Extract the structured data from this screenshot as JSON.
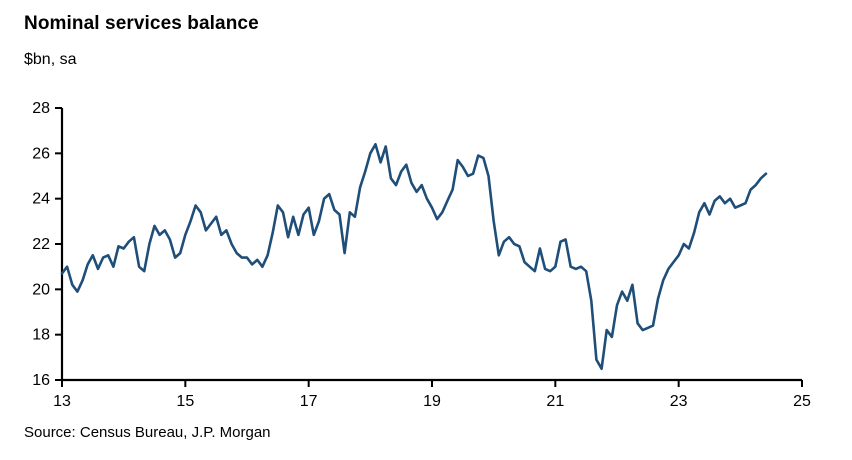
{
  "title": "Nominal services balance",
  "subtitle": "$bn, sa",
  "source": "Source: Census Bureau, J.P. Morgan",
  "chart_data": {
    "type": "line",
    "title": "Nominal services balance",
    "ylabel": "$bn, sa",
    "xlabel": "",
    "grid": false,
    "legend": "none",
    "xlim": [
      13,
      25
    ],
    "ylim": [
      16,
      28
    ],
    "x_ticks": [
      13,
      15,
      17,
      19,
      21,
      23,
      25
    ],
    "y_ticks": [
      16,
      18,
      20,
      22,
      24,
      26,
      28
    ],
    "x_unit": "year (20xx), monthly frequency",
    "line_color": "#1F4E79",
    "axis_color": "#000000",
    "x_start": 13,
    "x_step": 0.0833333,
    "series": [
      {
        "name": "Nominal services balance ($bn, sa)",
        "values": [
          20.7,
          21.0,
          20.2,
          19.9,
          20.4,
          21.1,
          21.5,
          20.9,
          21.4,
          21.5,
          21.0,
          21.9,
          21.8,
          22.1,
          22.3,
          21.0,
          20.8,
          22.0,
          22.8,
          22.4,
          22.6,
          22.2,
          21.4,
          21.6,
          22.4,
          23.0,
          23.7,
          23.4,
          22.6,
          22.9,
          23.2,
          22.4,
          22.6,
          22.0,
          21.6,
          21.4,
          21.4,
          21.1,
          21.3,
          21.0,
          21.5,
          22.5,
          23.7,
          23.4,
          22.3,
          23.2,
          22.4,
          23.3,
          23.6,
          22.4,
          23.0,
          24.0,
          24.2,
          23.5,
          23.3,
          21.6,
          23.4,
          23.2,
          24.5,
          25.2,
          26.0,
          26.4,
          25.6,
          26.3,
          24.9,
          24.6,
          25.2,
          25.5,
          24.7,
          24.3,
          24.6,
          24.0,
          23.6,
          23.1,
          23.4,
          23.9,
          24.4,
          25.7,
          25.4,
          25.0,
          25.1,
          25.9,
          25.8,
          25.0,
          23.0,
          21.5,
          22.1,
          22.3,
          22.0,
          21.9,
          21.2,
          21.0,
          20.8,
          21.8,
          20.9,
          20.8,
          21.0,
          22.1,
          22.2,
          21.0,
          20.9,
          21.0,
          20.8,
          19.5,
          16.9,
          16.5,
          18.2,
          17.9,
          19.3,
          19.9,
          19.5,
          20.2,
          18.5,
          18.2,
          18.3,
          18.4,
          19.6,
          20.4,
          20.9,
          21.2,
          21.5,
          22.0,
          21.8,
          22.5,
          23.4,
          23.8,
          23.3,
          23.9,
          24.1,
          23.8,
          24.0,
          23.6,
          23.7,
          23.8,
          24.4,
          24.6,
          24.9,
          25.1
        ]
      }
    ]
  }
}
